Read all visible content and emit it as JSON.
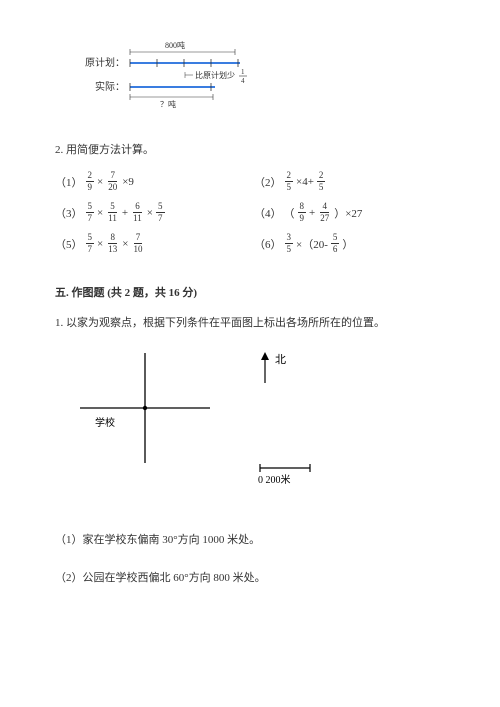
{
  "top_diagram": {
    "top_label": "800吨",
    "row1_label": "原计划：",
    "note": "比原计划少",
    "note_frac": {
      "num": "1",
      "den": "4"
    },
    "row2_label": "实际：",
    "bottom_label": "？吨",
    "line_color": "#3a7de0",
    "tick_color": "#333333"
  },
  "section2": {
    "label": "2. 用简便方法计算。",
    "problems": [
      {
        "idx": "（1）",
        "parts": [
          {
            "frac": {
              "n": "2",
              "d": "9"
            }
          },
          " × ",
          {
            "frac": {
              "n": "7",
              "d": "20"
            }
          },
          " ×9"
        ]
      },
      {
        "idx": "（2）",
        "parts": [
          {
            "frac": {
              "n": "2",
              "d": "5"
            }
          },
          " ×4+ ",
          {
            "frac": {
              "n": "2",
              "d": "5"
            }
          }
        ]
      },
      {
        "idx": "（3）",
        "parts": [
          {
            "frac": {
              "n": "5",
              "d": "7"
            }
          },
          " × ",
          {
            "frac": {
              "n": "5",
              "d": "11"
            }
          },
          " + ",
          {
            "frac": {
              "n": "6",
              "d": "11"
            }
          },
          " × ",
          {
            "frac": {
              "n": "5",
              "d": "7"
            }
          }
        ]
      },
      {
        "idx": "（4）",
        "parts": [
          "（",
          {
            "frac": {
              "n": "8",
              "d": "9"
            }
          },
          " + ",
          {
            "frac": {
              "n": "4",
              "d": "27"
            }
          },
          " ）×27"
        ]
      },
      {
        "idx": "（5）",
        "parts": [
          {
            "frac": {
              "n": "5",
              "d": "7"
            }
          },
          " × ",
          {
            "frac": {
              "n": "8",
              "d": "13"
            }
          },
          " × ",
          {
            "frac": {
              "n": "7",
              "d": "10"
            }
          }
        ]
      },
      {
        "idx": "（6）",
        "parts": [
          {
            "frac": {
              "n": "3",
              "d": "5"
            }
          },
          " ×（20- ",
          {
            "frac": {
              "n": "5",
              "d": "6"
            }
          },
          " ）"
        ]
      }
    ]
  },
  "section5": {
    "header": "五. 作图题 (共 2 题，共 16 分)",
    "q1": "1. 以家为观察点，根据下列条件在平面图上标出各场所所在的位置。",
    "north_label": "北",
    "school_label": "学校",
    "scale_label": "0  200米",
    "sub1": "（1）家在学校东偏南 30°方向 1000 米处。",
    "sub2": "（2）公园在学校西偏北 60°方向 800 米处。"
  },
  "colors": {
    "text": "#333333",
    "line_blue": "#3a7de0",
    "black": "#000000"
  }
}
